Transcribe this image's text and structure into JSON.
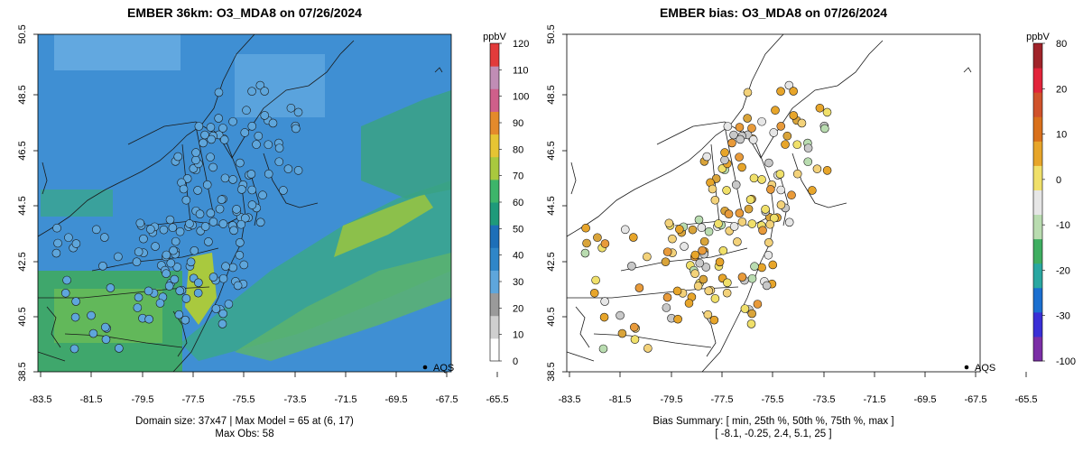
{
  "left_panel": {
    "title": "EMBER 36km: O3_MDA8 on 07/26/2024",
    "x_ticks": [
      "-83.5",
      "-81.5",
      "-79.5",
      "-77.5",
      "-75.5",
      "-73.5",
      "-71.5",
      "-69.5",
      "-67.5",
      "-65.5"
    ],
    "y_ticks": [
      "38.5",
      "40.5",
      "42.5",
      "44.5",
      "46.5",
      "48.5",
      "50.5"
    ],
    "legend_label": "AQS",
    "caption_line1": "Domain size: 37x47 | Max Model = 65 at (6, 17)",
    "caption_line2": "Max Obs: 58",
    "colorbar": {
      "unit": "ppbV",
      "labels": [
        "0",
        "10",
        "20",
        "30",
        "40",
        "50",
        "60",
        "70",
        "80",
        "90",
        "100",
        "110",
        "120"
      ],
      "colors": [
        "#ffffff",
        "#cfcfcf",
        "#9a9a9a",
        "#5ea6dc",
        "#2f86c8",
        "#1d6fb8",
        "#1f9a7a",
        "#3db56a",
        "#a9c93e",
        "#e6c433",
        "#e48a2b",
        "#cf5f8a",
        "#c08db5",
        "#e23b3b"
      ]
    }
  },
  "right_panel": {
    "title": "EMBER bias: O3_MDA8 on 07/26/2024",
    "x_ticks": [
      "-83.5",
      "-81.5",
      "-79.5",
      "-77.5",
      "-75.5",
      "-73.5",
      "-71.5",
      "-69.5",
      "-67.5",
      "-65.5"
    ],
    "y_ticks": [
      "38.5",
      "40.5",
      "42.5",
      "44.5",
      "46.5",
      "48.5",
      "50.5"
    ],
    "legend_label": "AQS",
    "caption_line1": "Bias Summary: [ min, 25th %, 50th %, 75th %, max ]",
    "caption_line2": "[ -8.1,   -0.25,   2.4,   5.1,   25 ]",
    "colorbar": {
      "unit": "ppbV",
      "labels": [
        "-100",
        "-30",
        "-20",
        "-10",
        "0",
        "10",
        "20",
        "80"
      ],
      "colors": [
        "#7b2ea6",
        "#3a2fd6",
        "#1b6fd0",
        "#2aa7a1",
        "#3fae61",
        "#b9dcb0",
        "#e6e6e6",
        "#f0e06a",
        "#e7a52a",
        "#d9701b",
        "#d0522b",
        "#e2233a",
        "#a0232a"
      ]
    }
  }
}
